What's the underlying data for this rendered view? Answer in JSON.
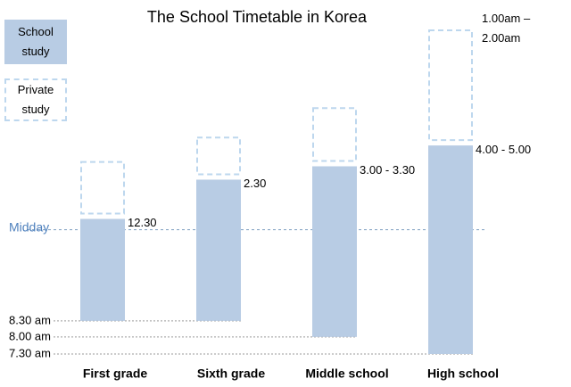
{
  "chart_data": {
    "type": "floating-bar",
    "title": "The School Timetable in Korea",
    "categories": [
      "First grade",
      "Sixth grade",
      "Middle school",
      "High school"
    ],
    "series": [
      {
        "name": "School study",
        "color": "#b8cce4",
        "start": [
          8.5,
          8.5,
          8,
          7.5
        ],
        "values": [
          12.5,
          14.5,
          15.25,
          16.5
        ],
        "value_labels": [
          "12.30",
          "2.30",
          "3.00 - 3.30",
          "4.00 - 5.00"
        ]
      },
      {
        "name": "Private study",
        "color": "#bdd7ee",
        "values": [
          15.5,
          17,
          19,
          25.5
        ],
        "value_labels": [
          null,
          null,
          null,
          "1.00am – 2.00am"
        ]
      }
    ],
    "ylim": [
      7.5,
      25.5
    ],
    "log_scale": true,
    "yticks": [
      {
        "value": 7.5,
        "label": "7.30 am"
      },
      {
        "value": 8,
        "label": "8.00 am"
      },
      {
        "value": 8.5,
        "label": "8.30 am"
      },
      {
        "value": 12,
        "label": "Midday"
      }
    ],
    "highlight_tick_color": "#4f81bd"
  }
}
